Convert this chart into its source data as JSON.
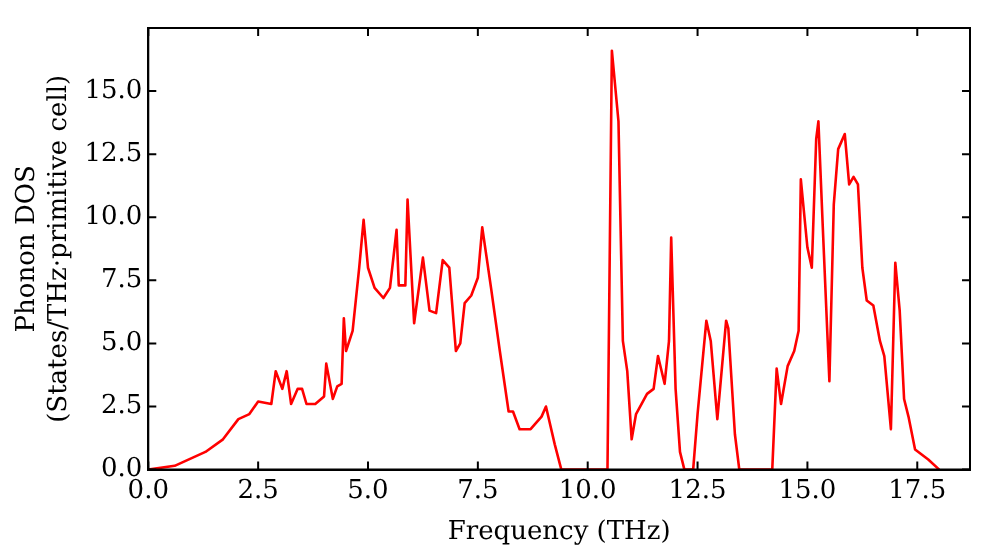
{
  "chart_data": {
    "type": "line",
    "xlabel": "Frequency (THz)",
    "ylabel": "Phonon DOS (States/THz·primitive cell)",
    "xlim": [
      0,
      18.7
    ],
    "ylim": [
      0,
      17.5
    ],
    "xticks": [
      {
        "value": 0,
        "label": "0.0"
      },
      {
        "value": 2.5,
        "label": "2.5"
      },
      {
        "value": 5,
        "label": "5.0"
      },
      {
        "value": 7.5,
        "label": "7.5"
      },
      {
        "value": 10,
        "label": "10.0"
      },
      {
        "value": 12.5,
        "label": "12.5"
      },
      {
        "value": 15,
        "label": "15.0"
      },
      {
        "value": 17.5,
        "label": "17.5"
      }
    ],
    "yticks": [
      {
        "value": 0,
        "label": "0.0"
      },
      {
        "value": 2.5,
        "label": "2.5"
      },
      {
        "value": 5,
        "label": "5.0"
      },
      {
        "value": 7.5,
        "label": "7.5"
      },
      {
        "value": 10,
        "label": "10.0"
      },
      {
        "value": 12.5,
        "label": "12.5"
      },
      {
        "value": 15,
        "label": "15.0"
      }
    ],
    "grid": false,
    "legend": false,
    "marker": "none",
    "line_style": "solid",
    "series": [
      {
        "color": "#ff0000",
        "x": [
          0,
          0.6,
          1.3,
          1.7,
          2.05,
          2.3,
          2.5,
          2.8,
          2.9,
          3.05,
          3.15,
          3.25,
          3.4,
          3.5,
          3.6,
          3.8,
          4.0,
          4.05,
          4.2,
          4.3,
          4.4,
          4.45,
          4.5,
          4.65,
          4.8,
          4.9,
          5.0,
          5.15,
          5.35,
          5.5,
          5.65,
          5.7,
          5.85,
          5.9,
          6.05,
          6.25,
          6.4,
          6.55,
          6.7,
          6.85,
          7.0,
          7.1,
          7.2,
          7.35,
          7.5,
          7.6,
          7.8,
          8.0,
          8.2,
          8.3,
          8.45,
          8.7,
          8.95,
          9.05,
          9.25,
          9.4,
          10.45,
          10.55,
          10.7,
          10.8,
          10.9,
          11.0,
          11.1,
          11.35,
          11.5,
          11.6,
          11.75,
          11.85,
          11.9,
          12.0,
          12.1,
          12.2,
          12.4,
          12.5,
          12.7,
          12.8,
          12.95,
          13.15,
          13.2,
          13.35,
          13.45,
          14.2,
          14.3,
          14.4,
          14.55,
          14.7,
          14.8,
          14.85,
          15.0,
          15.1,
          15.2,
          15.25,
          15.35,
          15.5,
          15.6,
          15.7,
          15.85,
          15.95,
          16.05,
          16.15,
          16.25,
          16.35,
          16.5,
          16.65,
          16.75,
          16.9,
          17.0,
          17.1,
          17.2,
          17.3,
          17.45,
          17.75,
          18.0
        ],
        "values": [
          0,
          0.15,
          0.7,
          1.2,
          2.0,
          2.2,
          2.7,
          2.6,
          3.9,
          3.2,
          3.9,
          2.6,
          3.2,
          3.2,
          2.6,
          2.6,
          2.9,
          4.2,
          2.8,
          3.3,
          3.4,
          6.0,
          4.7,
          5.5,
          8.0,
          9.9,
          8.0,
          7.2,
          6.8,
          7.2,
          9.5,
          7.3,
          7.3,
          10.7,
          5.8,
          8.4,
          6.3,
          6.2,
          8.3,
          8.0,
          4.7,
          5.0,
          6.6,
          6.9,
          7.6,
          9.6,
          7.2,
          4.7,
          2.3,
          2.3,
          1.6,
          1.6,
          2.1,
          2.5,
          1.0,
          0,
          0,
          16.6,
          13.8,
          5.1,
          3.9,
          1.2,
          2.2,
          3.0,
          3.2,
          4.5,
          3.4,
          5.1,
          9.2,
          3.2,
          0.7,
          0,
          0,
          2.2,
          5.9,
          5.1,
          2.0,
          5.9,
          5.6,
          1.4,
          0,
          0,
          4.0,
          2.6,
          4.1,
          4.7,
          5.5,
          11.5,
          8.8,
          8.0,
          13.1,
          13.8,
          9.6,
          3.5,
          10.5,
          12.7,
          13.3,
          11.3,
          11.6,
          11.3,
          8.0,
          6.7,
          6.5,
          5.1,
          4.5,
          1.6,
          8.2,
          6.3,
          2.8,
          2.1,
          0.8,
          0.4,
          0
        ]
      }
    ]
  }
}
